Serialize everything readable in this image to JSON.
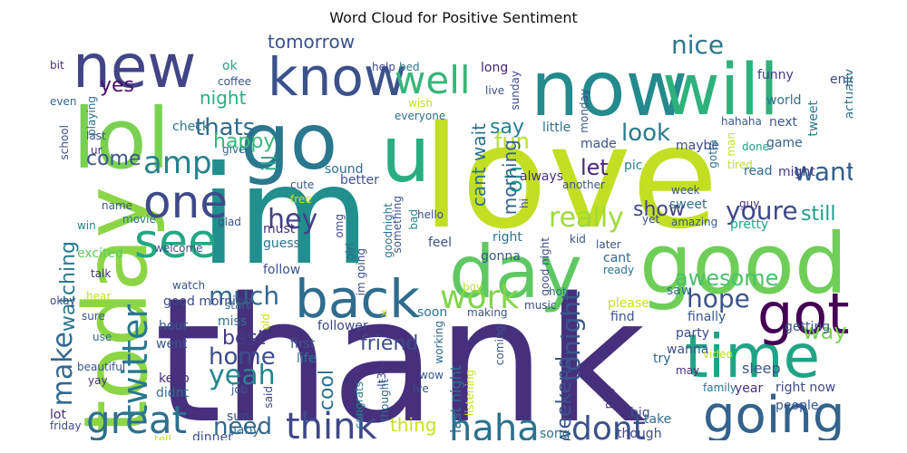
{
  "title": "Word Cloud for Positive Sentiment",
  "words": [
    {
      "text": "thank",
      "color": "#46307d",
      "rotate": false
    },
    {
      "text": "love",
      "color": "#c2df23",
      "rotate": false
    },
    {
      "text": "im",
      "color": "#218f8d",
      "rotate": false
    },
    {
      "text": "good",
      "color": "#6ece58",
      "rotate": false
    },
    {
      "text": "now",
      "color": "#238a8d",
      "rotate": false
    },
    {
      "text": "today",
      "color": "#8cd646",
      "rotate": true
    },
    {
      "text": "lol",
      "color": "#7ad151",
      "rotate": false
    },
    {
      "text": "day",
      "color": "#5ec962",
      "rotate": false
    },
    {
      "text": "go",
      "color": "#29788e",
      "rotate": false
    },
    {
      "text": "will",
      "color": "#2db27d",
      "rotate": false
    },
    {
      "text": "new",
      "color": "#414487",
      "rotate": false
    },
    {
      "text": "u",
      "color": "#28ae80",
      "rotate": false
    },
    {
      "text": "time",
      "color": "#20a386",
      "rotate": false
    },
    {
      "text": "know",
      "color": "#3b528b",
      "rotate": false
    },
    {
      "text": "back",
      "color": "#2f6c8e",
      "rotate": false
    },
    {
      "text": "got",
      "color": "#440154",
      "rotate": false
    },
    {
      "text": "going",
      "color": "#33638d",
      "rotate": false
    },
    {
      "text": "see",
      "color": "#22a884",
      "rotate": false
    },
    {
      "text": "one",
      "color": "#3e4a89",
      "rotate": false
    },
    {
      "text": "great",
      "color": "#2e6f8e",
      "rotate": false
    },
    {
      "text": "haha",
      "color": "#2c728e",
      "rotate": false
    },
    {
      "text": "think",
      "color": "#3f4788",
      "rotate": false
    },
    {
      "text": "well",
      "color": "#35b779",
      "rotate": false
    },
    {
      "text": "work",
      "color": "#84d44b",
      "rotate": false
    },
    {
      "text": "amp",
      "color": "#26828e",
      "rotate": false
    },
    {
      "text": "twitter",
      "color": "#2a788e",
      "rotate": true
    },
    {
      "text": "make",
      "color": "#31688e",
      "rotate": true
    },
    {
      "text": "dont",
      "color": "#3b528b",
      "rotate": false
    },
    {
      "text": "really",
      "color": "#9fda3a",
      "rotate": false
    },
    {
      "text": "hey",
      "color": "#424086",
      "rotate": false
    },
    {
      "text": "yeah",
      "color": "#25848e",
      "rotate": false
    },
    {
      "text": "much",
      "color": "#31688e",
      "rotate": false
    },
    {
      "text": "home",
      "color": "#3e4c8a",
      "rotate": false
    },
    {
      "text": "tonight",
      "color": "#38588c",
      "rotate": true
    },
    {
      "text": "nice",
      "color": "#2a788e",
      "rotate": false
    },
    {
      "text": "thats",
      "color": "#2f6b8e",
      "rotate": false
    },
    {
      "text": "youre",
      "color": "#3f4889",
      "rotate": false
    },
    {
      "text": "want",
      "color": "#34608d",
      "rotate": false
    },
    {
      "text": "look",
      "color": "#297b8e",
      "rotate": false
    },
    {
      "text": "hope",
      "color": "#3a538b",
      "rotate": false
    },
    {
      "text": "fun",
      "color": "#b5de2b",
      "rotate": false
    },
    {
      "text": "awesome",
      "color": "#4ac16d",
      "rotate": false
    },
    {
      "text": "way",
      "color": "#7ad151",
      "rotate": false
    },
    {
      "text": "need",
      "color": "#31688e",
      "rotate": false
    },
    {
      "text": "best",
      "color": "#443983",
      "rotate": false
    },
    {
      "text": "cool",
      "color": "#2c728e",
      "rotate": true
    },
    {
      "text": "friend",
      "color": "#3e4a89",
      "rotate": false
    },
    {
      "text": "oh",
      "color": "#1f9a8a",
      "rotate": true
    },
    {
      "text": "let",
      "color": "#482878",
      "rotate": false
    },
    {
      "text": "show",
      "color": "#414487",
      "rotate": false
    },
    {
      "text": "still",
      "color": "#1f9e89",
      "rotate": false
    },
    {
      "text": "happy",
      "color": "#35b779",
      "rotate": false
    },
    {
      "text": "come",
      "color": "#39568c",
      "rotate": false
    },
    {
      "text": "watching",
      "color": "#2a788e",
      "rotate": true
    },
    {
      "text": "weekend",
      "color": "#3b528b",
      "rotate": true
    },
    {
      "text": "night",
      "color": "#29af7f",
      "rotate": false
    },
    {
      "text": "tomorrow",
      "color": "#3b528b",
      "rotate": false
    },
    {
      "text": "yes",
      "color": "#471063",
      "rotate": false
    },
    {
      "text": "say",
      "color": "#26828e",
      "rotate": false
    },
    {
      "text": "morning",
      "color": "#34618d",
      "rotate": true
    },
    {
      "text": "cant wait",
      "color": "#2d708e",
      "rotate": true
    },
    {
      "text": "thing",
      "color": "#c8e020",
      "rotate": false
    },
    {
      "text": "ill",
      "color": "#22a884",
      "rotate": true
    },
    {
      "text": "sleep",
      "color": "#39568c",
      "rotate": false
    },
    {
      "text": "last night",
      "color": "#2d708e",
      "rotate": true
    },
    {
      "text": "funny",
      "color": "#443a83",
      "rotate": false
    },
    {
      "text": "world",
      "color": "#2c728e",
      "rotate": false
    },
    {
      "text": "next",
      "color": "#3b528b",
      "rotate": false
    },
    {
      "text": "enjoy",
      "color": "#3f4889",
      "rotate": false
    },
    {
      "text": "tweet",
      "color": "#2a788e",
      "rotate": true
    },
    {
      "text": "actually",
      "color": "#2c728e",
      "rotate": true
    },
    {
      "text": "game",
      "color": "#34618d",
      "rotate": false
    },
    {
      "text": "might",
      "color": "#453882",
      "rotate": false
    },
    {
      "text": "maybe",
      "color": "#3e4a89",
      "rotate": false
    },
    {
      "text": "made",
      "color": "#3b528b",
      "rotate": false
    },
    {
      "text": "pic",
      "color": "#26828e",
      "rotate": false
    },
    {
      "text": "always",
      "color": "#46307d",
      "rotate": false
    },
    {
      "text": "little",
      "color": "#2d708e",
      "rotate": false
    },
    {
      "text": "hahaha",
      "color": "#39568c",
      "rotate": false
    },
    {
      "text": "done",
      "color": "#1f9e89",
      "rotate": false
    },
    {
      "text": "tired",
      "color": "#b5de2b",
      "rotate": false
    },
    {
      "text": "sunday",
      "color": "#3e4a89",
      "rotate": true
    },
    {
      "text": "long",
      "color": "#482475",
      "rotate": false
    },
    {
      "text": "live",
      "color": "#3b528b",
      "rotate": false
    },
    {
      "text": "wish",
      "color": "#c2df23",
      "rotate": false
    },
    {
      "text": "everyone",
      "color": "#2c728e",
      "rotate": false
    },
    {
      "text": "help",
      "color": "#3e4a89",
      "rotate": false
    },
    {
      "text": "bed",
      "color": "#2a788e",
      "rotate": false
    },
    {
      "text": "ok",
      "color": "#20a386",
      "rotate": false
    },
    {
      "text": "coffee",
      "color": "#3b528b",
      "rotate": false
    },
    {
      "text": "bit",
      "color": "#46307d",
      "rotate": false
    },
    {
      "text": "even",
      "color": "#31688e",
      "rotate": false
    },
    {
      "text": "playing",
      "color": "#2d708e",
      "rotate": true
    },
    {
      "text": "school",
      "color": "#3e4a89",
      "rotate": true
    },
    {
      "text": "last",
      "color": "#39568c",
      "rotate": false
    },
    {
      "text": "ur",
      "color": "#443983",
      "rotate": false
    },
    {
      "text": "check",
      "color": "#2c728e",
      "rotate": false
    },
    {
      "text": "give",
      "color": "#31688e",
      "rotate": false
    },
    {
      "text": "sound",
      "color": "#2d708e",
      "rotate": false
    },
    {
      "text": "better",
      "color": "#3b528b",
      "rotate": false
    },
    {
      "text": "cute",
      "color": "#38588c",
      "rotate": false
    },
    {
      "text": "free",
      "color": "#c8e020",
      "rotate": false
    },
    {
      "text": "must",
      "color": "#46307d",
      "rotate": false
    },
    {
      "text": "guess",
      "color": "#2c728e",
      "rotate": false
    },
    {
      "text": "omg",
      "color": "#3e4a89",
      "rotate": true
    },
    {
      "text": "name",
      "color": "#39568c",
      "rotate": false
    },
    {
      "text": "movie",
      "color": "#2a788e",
      "rotate": false
    },
    {
      "text": "glad",
      "color": "#3b528b",
      "rotate": false
    },
    {
      "text": "win",
      "color": "#26828e",
      "rotate": false
    },
    {
      "text": "excited",
      "color": "#5ec962",
      "rotate": false
    },
    {
      "text": "welcome",
      "color": "#3e4a89",
      "rotate": false
    },
    {
      "text": "follow",
      "color": "#3b528b",
      "rotate": false
    },
    {
      "text": "girl",
      "color": "#31688e",
      "rotate": true
    },
    {
      "text": "im going",
      "color": "#3e4a89",
      "rotate": true
    },
    {
      "text": "goodnight",
      "color": "#2c728e",
      "rotate": true
    },
    {
      "text": "something",
      "color": "#3b528b",
      "rotate": true
    },
    {
      "text": "bad",
      "color": "#26828e",
      "rotate": true
    },
    {
      "text": "hello",
      "color": "#3e4a89",
      "rotate": false
    },
    {
      "text": "feel",
      "color": "#3b528b",
      "rotate": false
    },
    {
      "text": "right",
      "color": "#2c728e",
      "rotate": false
    },
    {
      "text": "gonna",
      "color": "#38588c",
      "rotate": false
    },
    {
      "text": "hi",
      "color": "#3e4a89",
      "rotate": true
    },
    {
      "text": "amazing",
      "color": "#39568c",
      "rotate": false
    },
    {
      "text": "sweet",
      "color": "#2d708e",
      "rotate": false
    },
    {
      "text": "week",
      "color": "#3b528b",
      "rotate": false
    },
    {
      "text": "guy",
      "color": "#46307d",
      "rotate": false
    },
    {
      "text": "pretty",
      "color": "#20a386",
      "rotate": false
    },
    {
      "text": "read",
      "color": "#31688e",
      "rotate": false
    },
    {
      "text": "yet",
      "color": "#3e4a89",
      "rotate": false
    },
    {
      "text": "another",
      "color": "#3b528b",
      "rotate": false
    },
    {
      "text": "man",
      "color": "#c2df23",
      "rotate": true
    },
    {
      "text": "gotta",
      "color": "#2c728e",
      "rotate": true
    },
    {
      "text": "talk",
      "color": "#46307d",
      "rotate": false
    },
    {
      "text": "watch",
      "color": "#3b528b",
      "rotate": false
    },
    {
      "text": "good morning",
      "color": "#3e4a89",
      "rotate": false
    },
    {
      "text": "hour",
      "color": "#39568c",
      "rotate": false
    },
    {
      "text": "start",
      "color": "#31688e",
      "rotate": false
    },
    {
      "text": "miss",
      "color": "#2d708e",
      "rotate": false
    },
    {
      "text": "old",
      "color": "#c8e020",
      "rotate": true
    },
    {
      "text": "went",
      "color": "#3b528b",
      "rotate": false
    },
    {
      "text": "keep",
      "color": "#46307d",
      "rotate": false
    },
    {
      "text": "didnt",
      "color": "#31688e",
      "rotate": false
    },
    {
      "text": "okay",
      "color": "#3e4a89",
      "rotate": false
    },
    {
      "text": "hear",
      "color": "#c2df23",
      "rotate": false
    },
    {
      "text": "sure",
      "color": "#3b528b",
      "rotate": false
    },
    {
      "text": "use",
      "color": "#2c728e",
      "rotate": false
    },
    {
      "text": "beautiful",
      "color": "#39568c",
      "rotate": false
    },
    {
      "text": "yay",
      "color": "#46307d",
      "rotate": false
    },
    {
      "text": "job",
      "color": "#3b528b",
      "rotate": false
    },
    {
      "text": "said",
      "color": "#3e4a89",
      "rotate": true
    },
    {
      "text": "first",
      "color": "#3b528b",
      "rotate": false
    },
    {
      "text": "life",
      "color": "#2c728e",
      "rotate": false
    },
    {
      "text": "congrats",
      "color": "#26828e",
      "rotate": true
    },
    {
      "text": "lt3",
      "color": "#3e4a89",
      "rotate": true
    },
    {
      "text": "thought",
      "color": "#31688e",
      "rotate": true
    },
    {
      "text": "listening",
      "color": "#c8e020",
      "rotate": true
    },
    {
      "text": "wow",
      "color": "#39568c",
      "rotate": false
    },
    {
      "text": "ive",
      "color": "#3b528b",
      "rotate": false
    },
    {
      "text": "follower",
      "color": "#3e4a89",
      "rotate": false
    },
    {
      "text": "soon",
      "color": "#2c728e",
      "rotate": false
    },
    {
      "text": "making",
      "color": "#3b528b",
      "rotate": false
    },
    {
      "text": "working",
      "color": "#31688e",
      "rotate": true
    },
    {
      "text": "boy",
      "color": "#c2df23",
      "rotate": false
    },
    {
      "text": "kid",
      "color": "#3b528b",
      "rotate": false
    },
    {
      "text": "hot",
      "color": "#2c728e",
      "rotate": false
    },
    {
      "text": "music",
      "color": "#3e4a89",
      "rotate": false
    },
    {
      "text": "coming",
      "color": "#39568c",
      "rotate": true
    },
    {
      "text": "later",
      "color": "#3b528b",
      "rotate": false
    },
    {
      "text": "cant",
      "color": "#31688e",
      "rotate": false
    },
    {
      "text": "ready",
      "color": "#2c728e",
      "rotate": false
    },
    {
      "text": "good night",
      "color": "#3e4a89",
      "rotate": true
    },
    {
      "text": "please",
      "color": "#c8e020",
      "rotate": false
    },
    {
      "text": "find",
      "color": "#3b528b",
      "rotate": false
    },
    {
      "text": "finally",
      "color": "#39568c",
      "rotate": false
    },
    {
      "text": "saw",
      "color": "#2d708e",
      "rotate": false
    },
    {
      "text": "party",
      "color": "#3e4a89",
      "rotate": false
    },
    {
      "text": "wanna",
      "color": "#3b528b",
      "rotate": false
    },
    {
      "text": "may",
      "color": "#46307d",
      "rotate": false
    },
    {
      "text": "getting",
      "color": "#39568c",
      "rotate": false
    },
    {
      "text": "try",
      "color": "#31688e",
      "rotate": false
    },
    {
      "text": "video",
      "color": "#c2df23",
      "rotate": false
    },
    {
      "text": "family",
      "color": "#2c728e",
      "rotate": false
    },
    {
      "text": "year",
      "color": "#46307d",
      "rotate": false
    },
    {
      "text": "right now",
      "color": "#3e4a89",
      "rotate": false
    },
    {
      "text": "people",
      "color": "#3b528b",
      "rotate": false
    },
    {
      "text": "take",
      "color": "#31688e",
      "rotate": false
    },
    {
      "text": "though",
      "color": "#3e4a89",
      "rotate": false
    },
    {
      "text": "big",
      "color": "#3b528b",
      "rotate": false
    },
    {
      "text": "song",
      "color": "#2c728e",
      "rotate": false
    },
    {
      "text": "play",
      "color": "#46307d",
      "rotate": true
    },
    {
      "text": "mom",
      "color": "#3b528b",
      "rotate": false
    },
    {
      "text": "sun",
      "color": "#3e4a89",
      "rotate": false
    },
    {
      "text": "baby",
      "color": "#31688e",
      "rotate": false
    },
    {
      "text": "dinner",
      "color": "#3b528b",
      "rotate": false
    },
    {
      "text": "tell",
      "color": "#c8e020",
      "rotate": false
    },
    {
      "text": "lot",
      "color": "#46307d",
      "rotate": false
    },
    {
      "text": "friday",
      "color": "#3e4a89",
      "rotate": false
    },
    {
      "text": "monday",
      "color": "#3b528b",
      "rotate": true
    },
    {
      "text": "x",
      "color": "#c2df23",
      "rotate": false
    }
  ]
}
